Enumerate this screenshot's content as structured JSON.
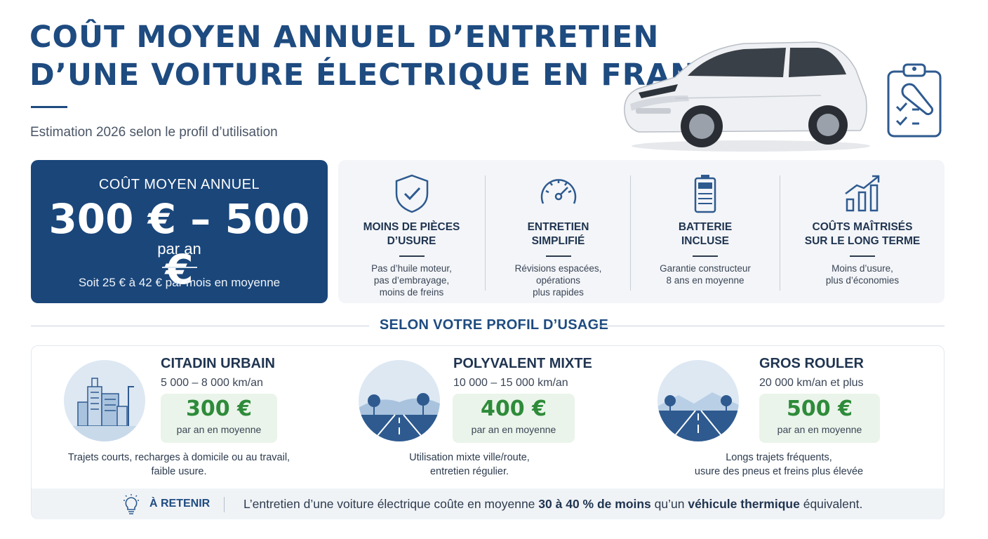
{
  "header": {
    "title_line1": "COÛT MOYEN ANNUEL D’ENTRETIEN",
    "title_line2": "D’UNE VOITURE ÉLECTRIQUE EN FRANCE",
    "subtitle": "Estimation 2026 selon le profil d’utilisation"
  },
  "summary": {
    "label": "COÛT MOYEN ANNUEL",
    "range": "300 € – 500 €",
    "period": "par an",
    "monthly": "Soit 25 € à 42 € par mois en moyenne"
  },
  "features": [
    {
      "icon": "shield-check-icon",
      "title_l1": "MOINS DE PIÈCES",
      "title_l2": "D’USURE",
      "d1": "Pas d’huile moteur,",
      "d2": "pas d’embrayage,",
      "d3": "moins de freins"
    },
    {
      "icon": "speedometer-icon",
      "title_l1": "ENTRETIEN",
      "title_l2": "SIMPLIFIÉ",
      "d1": "Révisions espacées,",
      "d2": "opérations",
      "d3": "plus rapides"
    },
    {
      "icon": "battery-icon",
      "title_l1": "BATTERIE",
      "title_l2": "INCLUSE",
      "d1": "Garantie constructeur",
      "d2": "8 ans en moyenne",
      "d3": ""
    },
    {
      "icon": "growth-chart-icon",
      "title_l1": "COÛTS MAÎTRISÉS",
      "title_l2": "SUR LE LONG TERME",
      "d1": "Moins d’usure,",
      "d2": "plus d’économies",
      "d3": ""
    }
  ],
  "section_title": "SELON VOTRE PROFIL D’USAGE",
  "profiles": [
    {
      "name": "CITADIN URBAIN",
      "km": "5 000 – 8 000 km/an",
      "amount": "300 €",
      "amount_sub": "par an en moyenne",
      "d1": "Trajets courts, recharges à domicile ou au travail,",
      "d2": "faible usure.",
      "icon": "city-buildings-icon"
    },
    {
      "name": "POLYVALENT MIXTE",
      "km": "10 000 – 15 000 km/an",
      "amount": "400 €",
      "amount_sub": "par an en moyenne",
      "d1": "Utilisation mixte ville/route,",
      "d2": "entretien régulier.",
      "icon": "road-landscape-icon"
    },
    {
      "name": "GROS ROULER",
      "km": "20 000 km/an et plus",
      "amount": "500 €",
      "amount_sub": "par an en moyenne",
      "d1": "Longs trajets fréquents,",
      "d2": "usure des pneus et freins plus élevée",
      "icon": "highway-icon"
    }
  ],
  "retain": {
    "label": "À RETENIR",
    "t1": "L’entretien d’une voiture électrique coûte en moyenne ",
    "b1": "30 à 40 % de moins",
    "t2": " qu’un ",
    "b2": "véhicule thermique",
    "t3": " équivalent."
  },
  "colors": {
    "primary": "#1a467a",
    "accent_green": "#2e8b3a",
    "green_bg": "#eaf4ea",
    "panel_bg": "#f3f5f8"
  }
}
